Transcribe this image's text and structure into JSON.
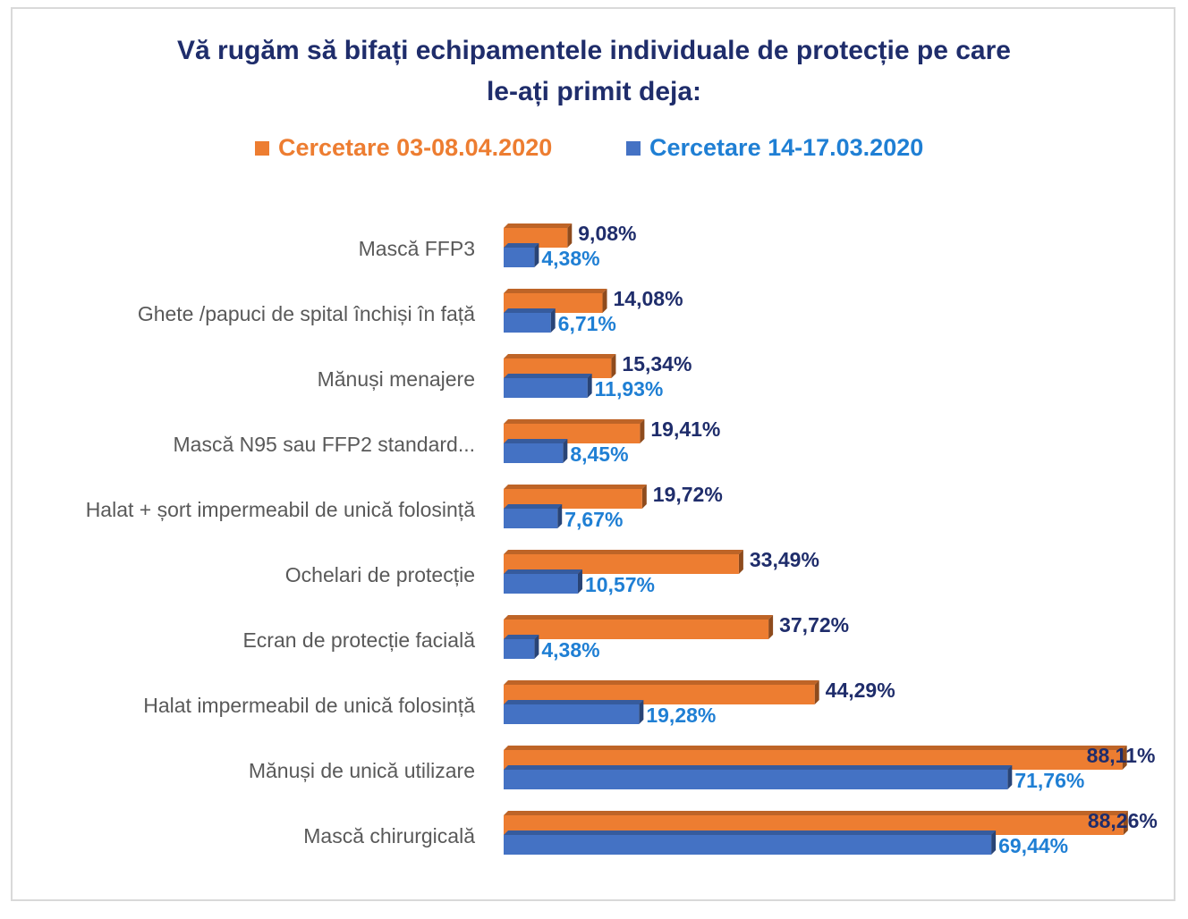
{
  "chart_data": {
    "type": "bar",
    "orientation": "horizontal",
    "title_lines": [
      "Vă rugăm să bifați echipamentele individuale de protecție pe care",
      "le-ați primit deja:"
    ],
    "legend_position": "top",
    "grid": false,
    "categories": [
      "Mască FFP3",
      "Ghete /papuci de spital închiși în față",
      "Mănuși menajere",
      "Mască N95 sau FFP2 standard...",
      "Halat + șort impermeabil de unică folosință",
      "Ochelari de protecție",
      "Ecran de protecție facială",
      "Halat impermeabil de unică folosință",
      "Mănuși de unică utilizare",
      "Mască chirurgicală"
    ],
    "series": [
      {
        "name": "Cercetare 03-08.04.2020",
        "color": "#ed7d31",
        "label_color": "#1f2d6b",
        "values": [
          9.08,
          14.08,
          15.34,
          19.41,
          19.72,
          33.49,
          37.72,
          44.29,
          88.11,
          88.26
        ],
        "labels": [
          "9,08%",
          "14,08%",
          "15,34%",
          "19,41%",
          "19,72%",
          "33,49%",
          "37,72%",
          "44,29%",
          "88,11%",
          "88,26%"
        ]
      },
      {
        "name": "Cercetare 14-17.03.2020",
        "color": "#4472c4",
        "label_color": "#1f7fd4",
        "values": [
          4.38,
          6.71,
          11.93,
          8.45,
          7.67,
          10.57,
          4.38,
          19.28,
          71.76,
          69.44
        ],
        "labels": [
          "4,38%",
          "6,71%",
          "11,93%",
          "8,45%",
          "7,67%",
          "10,57%",
          "4,38%",
          "19,28%",
          "71,76%",
          "69,44%"
        ]
      }
    ],
    "xlim": [
      0,
      100
    ],
    "unit": "%"
  }
}
